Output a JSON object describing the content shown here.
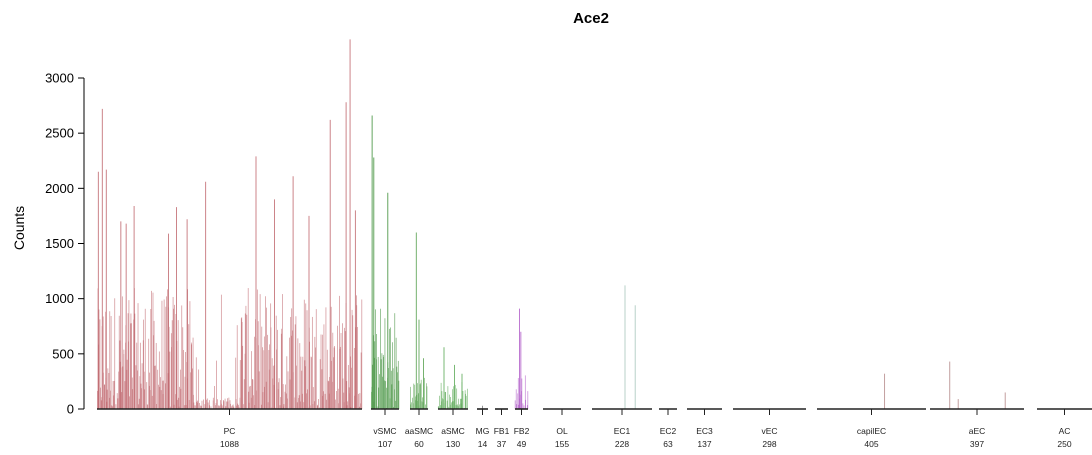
{
  "chart_data": {
    "type": "bar",
    "title": "Ace2",
    "ylabel": "Counts",
    "xlabel": "",
    "ylim": [
      0,
      3400
    ],
    "yticks": [
      0,
      500,
      1000,
      1500,
      2000,
      2500,
      3000
    ],
    "grid": false,
    "groups": [
      {
        "name": "PC",
        "count": "1088",
        "color": "#c0676e",
        "peaks": [
          {
            "pos": 0.005,
            "value": 2150
          },
          {
            "pos": 0.02,
            "value": 2720
          },
          {
            "pos": 0.035,
            "value": 2170
          },
          {
            "pos": 0.09,
            "value": 1700
          },
          {
            "pos": 0.11,
            "value": 1680
          },
          {
            "pos": 0.14,
            "value": 1840
          },
          {
            "pos": 0.27,
            "value": 1590
          },
          {
            "pos": 0.3,
            "value": 1830
          },
          {
            "pos": 0.34,
            "value": 1720
          },
          {
            "pos": 0.41,
            "value": 2060
          },
          {
            "pos": 0.6,
            "value": 2290
          },
          {
            "pos": 0.67,
            "value": 1900
          },
          {
            "pos": 0.74,
            "value": 2110
          },
          {
            "pos": 0.8,
            "value": 1750
          },
          {
            "pos": 0.88,
            "value": 2620
          },
          {
            "pos": 0.94,
            "value": 2780
          },
          {
            "pos": 0.955,
            "value": 3350
          },
          {
            "pos": 0.975,
            "value": 1800
          }
        ]
      },
      {
        "name": "vSMC",
        "count": "107",
        "color": "#3f8f3a",
        "peaks": [
          {
            "pos": 0.04,
            "value": 2660
          },
          {
            "pos": 0.1,
            "value": 2280
          },
          {
            "pos": 0.6,
            "value": 1960
          }
        ]
      },
      {
        "name": "aaSMC",
        "count": "60",
        "color": "#55a04e",
        "peaks": [
          {
            "pos": 0.35,
            "value": 1600
          },
          {
            "pos": 0.5,
            "value": 810
          },
          {
            "pos": 0.75,
            "value": 460
          }
        ]
      },
      {
        "name": "aSMC",
        "count": "130",
        "color": "#5ba855",
        "peaks": [
          {
            "pos": 0.2,
            "value": 560
          },
          {
            "pos": 0.55,
            "value": 400
          },
          {
            "pos": 0.8,
            "value": 320
          }
        ]
      },
      {
        "name": "MG",
        "count": "14",
        "color": "#777777",
        "peaks": [
          {
            "pos": 0.5,
            "value": 30
          }
        ]
      },
      {
        "name": "FB1",
        "count": "37",
        "color": "#777777",
        "peaks": []
      },
      {
        "name": "FB2",
        "count": "49",
        "color": "#b05cc8",
        "peaks": [
          {
            "pos": 0.35,
            "value": 910
          },
          {
            "pos": 0.45,
            "value": 700
          }
        ]
      },
      {
        "name": "OL",
        "count": "155",
        "color": "#9a9a9a",
        "peaks": []
      },
      {
        "name": "EC1",
        "count": "228",
        "color": "#a7c8bd",
        "peaks": [
          {
            "pos": 0.55,
            "value": 1120
          },
          {
            "pos": 0.72,
            "value": 940
          }
        ]
      },
      {
        "name": "EC2",
        "count": "63",
        "color": "#9a9a9a",
        "peaks": []
      },
      {
        "name": "EC3",
        "count": "137",
        "color": "#9a9a9a",
        "peaks": []
      },
      {
        "name": "vEC",
        "count": "298",
        "color": "#9a9a9a",
        "peaks": []
      },
      {
        "name": "capilEC",
        "count": "405",
        "color": "#b58a8a",
        "peaks": [
          {
            "pos": 0.62,
            "value": 320
          }
        ]
      },
      {
        "name": "aEC",
        "count": "397",
        "color": "#b58a8a",
        "peaks": [
          {
            "pos": 0.21,
            "value": 430
          },
          {
            "pos": 0.3,
            "value": 90
          },
          {
            "pos": 0.8,
            "value": 150
          }
        ]
      },
      {
        "name": "AC",
        "count": "250",
        "color": "#9a9a9a",
        "peaks": []
      }
    ]
  }
}
